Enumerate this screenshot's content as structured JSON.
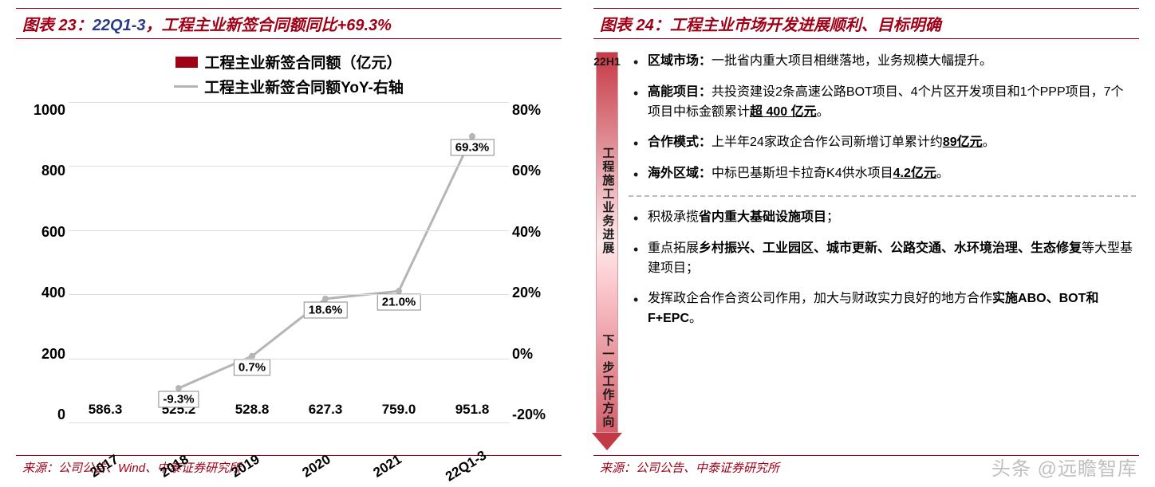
{
  "left": {
    "title_prefix": "图表 23：",
    "title_blue": "22Q1-3",
    "title_rest": "，工程主业新签合同额同比+69.3%",
    "legend_bar": "工程主业新签合同额（亿元）",
    "legend_line": "工程主业新签合同额YoY-右轴",
    "source_prefix": "来源：",
    "source_text": "公司公告、Wind、中泰证券研究所",
    "chart": {
      "type": "bar+line",
      "categories": [
        "2017",
        "2018",
        "2019",
        "2020",
        "2021",
        "22Q1-3"
      ],
      "bar_values": [
        586.3,
        525.2,
        528.8,
        627.3,
        759.0,
        951.8
      ],
      "bar_labels": [
        "586.3",
        "525.2",
        "528.8",
        "627.3",
        "759.0",
        "951.8"
      ],
      "bar_color": "#a00016",
      "left_ticks": [
        "1000",
        "800",
        "600",
        "400",
        "200",
        "0"
      ],
      "left_max": 1000,
      "yoy_values": [
        null,
        -9.3,
        0.7,
        18.6,
        21.0,
        69.3
      ],
      "yoy_labels": [
        "",
        "-9.3%",
        "0.7%",
        "18.6%",
        "21.0%",
        "69.3%"
      ],
      "right_ticks": [
        "80%",
        "60%",
        "40%",
        "20%",
        "0%",
        "-20%"
      ],
      "right_min": -20,
      "right_max": 80,
      "line_color": "#b5b5b5",
      "grid_color": "#dddddd",
      "background_color": "#ffffff"
    }
  },
  "right": {
    "title_prefix": "图表 24：",
    "title_rest": "工程主业市场开发进展顺利、目标明确",
    "source_prefix": "来源：",
    "source_text": "公司公告、中泰证券研究所",
    "arrow_top": "22H1",
    "arrow_label_a": "工程施工业务进展",
    "arrow_label_b": "下一步工作方向",
    "section_a": [
      {
        "head": "区域市场：",
        "body_parts": [
          {
            "t": "一批省内重大项目相继落地，业务规模大幅提升。"
          }
        ]
      },
      {
        "head": "高能项目：",
        "body_parts": [
          {
            "t": "共投资建设2条高速公路BOT项目、4个片区开发项目和1个PPP项目，7个项目中标金额累计"
          },
          {
            "t": "超 400 亿元",
            "ul": true
          },
          {
            "t": "。"
          }
        ]
      },
      {
        "head": "合作模式：",
        "body_parts": [
          {
            "t": "上半年24家政企合作公司新增订单累计约"
          },
          {
            "t": "89亿元",
            "ul": true
          },
          {
            "t": "。"
          }
        ]
      },
      {
        "head": "海外区域：",
        "body_parts": [
          {
            "t": "中标巴基斯坦卡拉奇K4供水项目"
          },
          {
            "t": "4.2亿元",
            "ul": true
          },
          {
            "t": "。"
          }
        ]
      }
    ],
    "section_b": [
      {
        "body_parts": [
          {
            "t": "积极承揽"
          },
          {
            "t": "省内重大基础设施项目",
            "b": true
          },
          {
            "t": "；"
          }
        ]
      },
      {
        "body_parts": [
          {
            "t": "重点拓展"
          },
          {
            "t": "乡村振兴、工业园区、城市更新、公路交通、水环境治理、生态修复",
            "b": true
          },
          {
            "t": "等大型基建项目；"
          }
        ]
      },
      {
        "body_parts": [
          {
            "t": "发挥政企合作合资公司作用，加大与财政实力良好的地方合作"
          },
          {
            "t": "实施ABO、BOT和F+EPC",
            "b": true
          },
          {
            "t": "。"
          }
        ]
      }
    ]
  },
  "watermark": "头条 @远瞻智库"
}
